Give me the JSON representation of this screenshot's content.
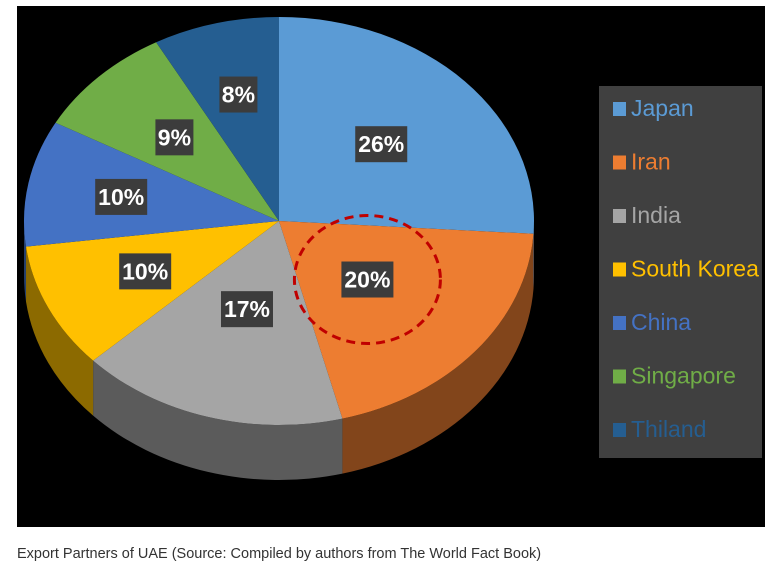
{
  "caption": "Export Partners of UAE (Source: Compiled by authors from The World Fact Book)",
  "colors": {
    "background": "#000000",
    "legend_box": "#404040",
    "label_box": "#3c3c3c",
    "highlight_circle": "#c00000"
  },
  "chart_data": {
    "type": "pie",
    "style": "3d",
    "title": "",
    "legend_position": "right",
    "highlighted": "Iran",
    "slices": [
      {
        "name": "Japan",
        "value": 26,
        "label": "26%",
        "color": "#5b9bd5"
      },
      {
        "name": "Iran",
        "value": 20,
        "label": "20%",
        "color": "#ed7d31"
      },
      {
        "name": "India",
        "value": 17,
        "label": "17%",
        "color": "#a5a5a5"
      },
      {
        "name": "South Korea",
        "value": 10,
        "label": "10%",
        "color": "#ffc000"
      },
      {
        "name": "China",
        "value": 10,
        "label": "10%",
        "color": "#4472c4"
      },
      {
        "name": "Singapore",
        "value": 9,
        "label": "9%",
        "color": "#70ad47"
      },
      {
        "name": "Thiland",
        "value": 8,
        "label": "8%",
        "color": "#255e91"
      }
    ]
  }
}
